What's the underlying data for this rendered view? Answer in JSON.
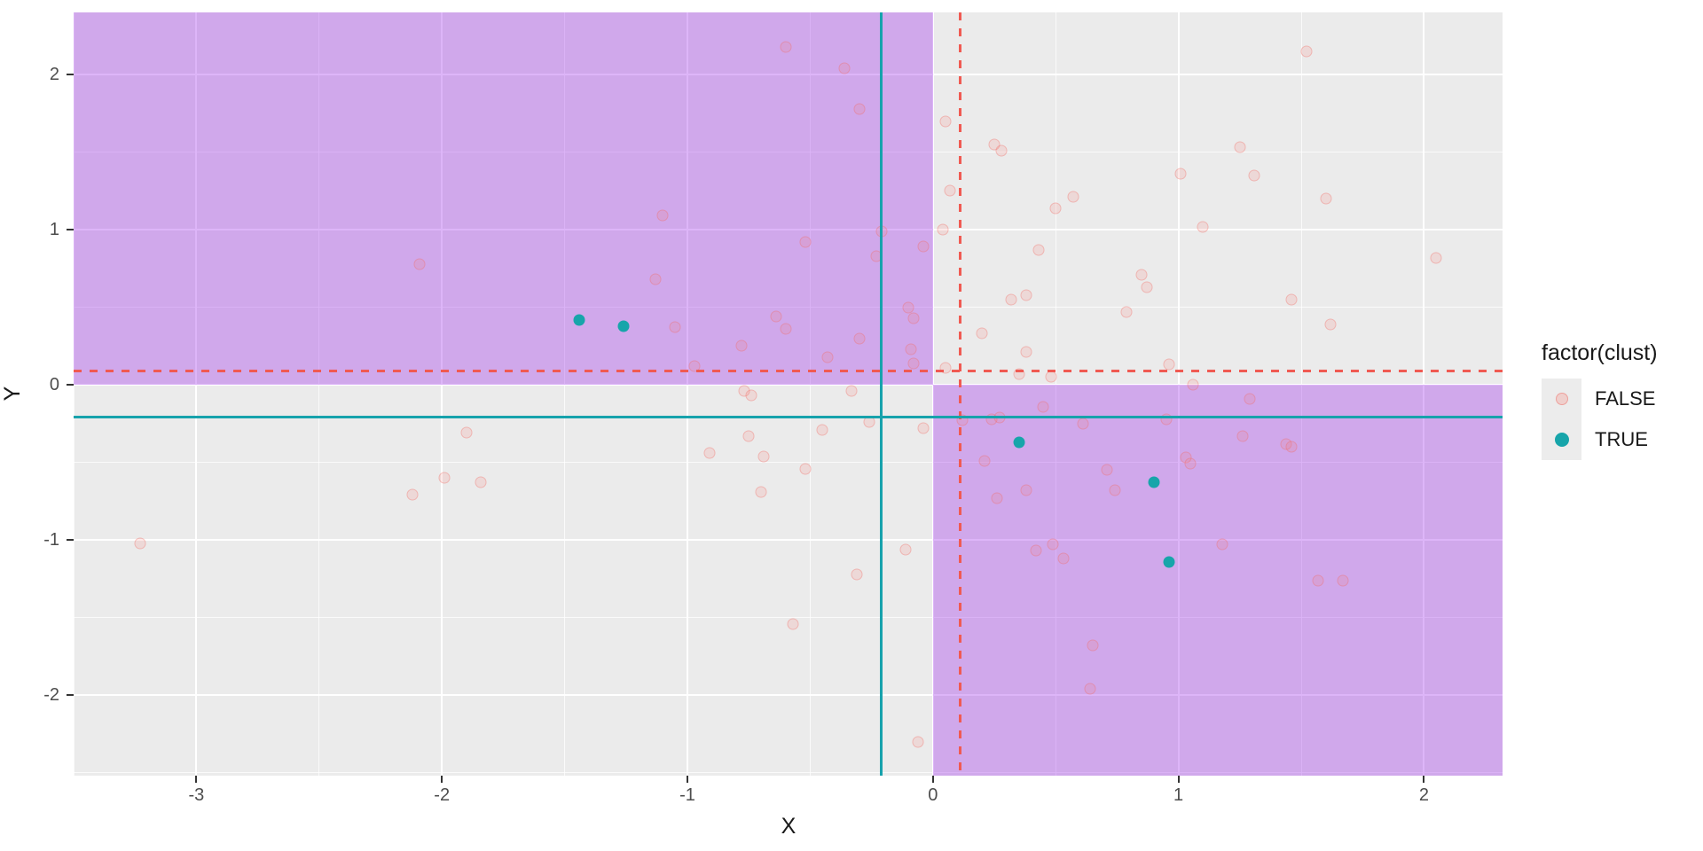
{
  "figure": {
    "background": "#ffffff",
    "panel_background": "#ebebeb",
    "gridline_color": "#ffffff"
  },
  "chart_data": {
    "type": "scatter",
    "title": "",
    "xlabel": "X",
    "ylabel": "Y",
    "xlim": [
      -3.5,
      2.32
    ],
    "ylim": [
      -2.52,
      2.4
    ],
    "x_ticks": [
      -3,
      -2,
      -1,
      0,
      1,
      2
    ],
    "y_ticks": [
      -2,
      -1,
      0,
      1,
      2
    ],
    "grid": {
      "major_step": 1,
      "minor_step": 0.5,
      "on": true
    },
    "shaded_quadrants": {
      "color": "rgba(163,54,236,0.37)",
      "color_hint": "#d6aff0",
      "rects": [
        {
          "x0": -3.5,
          "x1": 0,
          "y0": 0,
          "y1": 2.4
        },
        {
          "x0": 0,
          "x1": 2.32,
          "y0": -2.52,
          "y1": 0
        }
      ]
    },
    "reference_lines": [
      {
        "axis": "v",
        "value": 0.11,
        "style": "dashed",
        "color": "#f05a52",
        "width": 3
      },
      {
        "axis": "h",
        "value": 0.09,
        "style": "dashed",
        "color": "#f05a52",
        "width": 3
      },
      {
        "axis": "v",
        "value": -0.21,
        "style": "solid",
        "color": "#17a2ac",
        "width": 3
      },
      {
        "axis": "h",
        "value": -0.21,
        "style": "solid",
        "color": "#17a2ac",
        "width": 3
      }
    ],
    "series": [
      {
        "name": "FALSE",
        "color": "#F8766D",
        "fill": "rgba(248,118,109,0.16)",
        "points": [
          [
            -2.09,
            0.78
          ],
          [
            -2.12,
            -0.71
          ],
          [
            -1.1,
            1.09
          ],
          [
            -0.6,
            2.18
          ],
          [
            -0.36,
            2.04
          ],
          [
            -0.3,
            1.78
          ],
          [
            0.05,
            1.7
          ],
          [
            0.25,
            1.55
          ],
          [
            0.28,
            1.51
          ],
          [
            0.07,
            1.25
          ],
          [
            0.57,
            1.21
          ],
          [
            0.5,
            1.14
          ],
          [
            -0.21,
            0.99
          ],
          [
            0.04,
            1.0
          ],
          [
            -0.52,
            0.92
          ],
          [
            -0.04,
            0.89
          ],
          [
            -0.23,
            0.83
          ],
          [
            0.43,
            0.87
          ],
          [
            1.52,
            2.15
          ],
          [
            1.25,
            1.53
          ],
          [
            1.01,
            1.36
          ],
          [
            1.31,
            1.35
          ],
          [
            1.6,
            1.2
          ],
          [
            1.1,
            1.02
          ],
          [
            2.05,
            0.82
          ],
          [
            -1.13,
            0.68
          ],
          [
            -1.05,
            0.37
          ],
          [
            -0.78,
            0.25
          ],
          [
            -0.64,
            0.44
          ],
          [
            -0.6,
            0.36
          ],
          [
            -0.97,
            0.12
          ],
          [
            -0.77,
            -0.04
          ],
          [
            -0.74,
            -0.07
          ],
          [
            -1.9,
            -0.31
          ],
          [
            -0.75,
            -0.33
          ],
          [
            -0.91,
            -0.44
          ],
          [
            -0.69,
            -0.46
          ],
          [
            -1.99,
            -0.6
          ],
          [
            -1.84,
            -0.63
          ],
          [
            -0.7,
            -0.69
          ],
          [
            -0.1,
            0.5
          ],
          [
            -0.08,
            0.43
          ],
          [
            0.32,
            0.55
          ],
          [
            0.38,
            0.58
          ],
          [
            -0.3,
            0.3
          ],
          [
            -0.43,
            0.18
          ],
          [
            -0.09,
            0.23
          ],
          [
            -0.08,
            0.14
          ],
          [
            0.2,
            0.33
          ],
          [
            0.38,
            0.21
          ],
          [
            0.79,
            0.47
          ],
          [
            0.85,
            0.71
          ],
          [
            0.87,
            0.63
          ],
          [
            0.05,
            0.11
          ],
          [
            0.35,
            0.07
          ],
          [
            0.48,
            0.05
          ],
          [
            -0.33,
            -0.04
          ],
          [
            -0.26,
            -0.24
          ],
          [
            -0.45,
            -0.29
          ],
          [
            -0.04,
            -0.28
          ],
          [
            0.12,
            -0.23
          ],
          [
            0.24,
            -0.22
          ],
          [
            0.27,
            -0.21
          ],
          [
            0.45,
            -0.14
          ],
          [
            0.61,
            -0.25
          ],
          [
            0.21,
            -0.49
          ],
          [
            -0.52,
            -0.54
          ],
          [
            0.26,
            -0.73
          ],
          [
            0.38,
            -0.68
          ],
          [
            0.71,
            -0.55
          ],
          [
            0.74,
            -0.68
          ],
          [
            1.46,
            0.55
          ],
          [
            1.62,
            0.39
          ],
          [
            0.96,
            0.13
          ],
          [
            1.06,
            0.0
          ],
          [
            1.29,
            -0.09
          ],
          [
            0.95,
            -0.22
          ],
          [
            1.26,
            -0.33
          ],
          [
            1.44,
            -0.38
          ],
          [
            1.46,
            -0.4
          ],
          [
            1.03,
            -0.47
          ],
          [
            1.05,
            -0.51
          ],
          [
            -3.23,
            -1.02
          ],
          [
            -0.11,
            -1.06
          ],
          [
            -0.31,
            -1.22
          ],
          [
            -0.57,
            -1.54
          ],
          [
            0.42,
            -1.07
          ],
          [
            0.49,
            -1.03
          ],
          [
            0.53,
            -1.12
          ],
          [
            0.65,
            -1.68
          ],
          [
            0.64,
            -1.96
          ],
          [
            -0.06,
            -2.3
          ],
          [
            1.18,
            -1.03
          ],
          [
            1.57,
            -1.26
          ],
          [
            1.67,
            -1.26
          ]
        ]
      },
      {
        "name": "TRUE",
        "color": "#17a5aa",
        "fill": "#17a5aa",
        "points": [
          [
            -1.44,
            0.42
          ],
          [
            -1.26,
            0.38
          ],
          [
            0.35,
            -0.37
          ],
          [
            0.9,
            -0.63
          ],
          [
            0.96,
            -1.14
          ]
        ]
      }
    ],
    "legend": {
      "title": "factor(clust)",
      "position": "right",
      "entries": [
        {
          "label": "FALSE",
          "dot_color": "rgba(248,118,109,0.25)",
          "dot_border": "rgba(238,105,97,0.45)",
          "dot_size": 12
        },
        {
          "label": "TRUE",
          "dot_color": "#17a5aa",
          "dot_border": "#17a5aa",
          "dot_size": 14
        }
      ]
    }
  }
}
